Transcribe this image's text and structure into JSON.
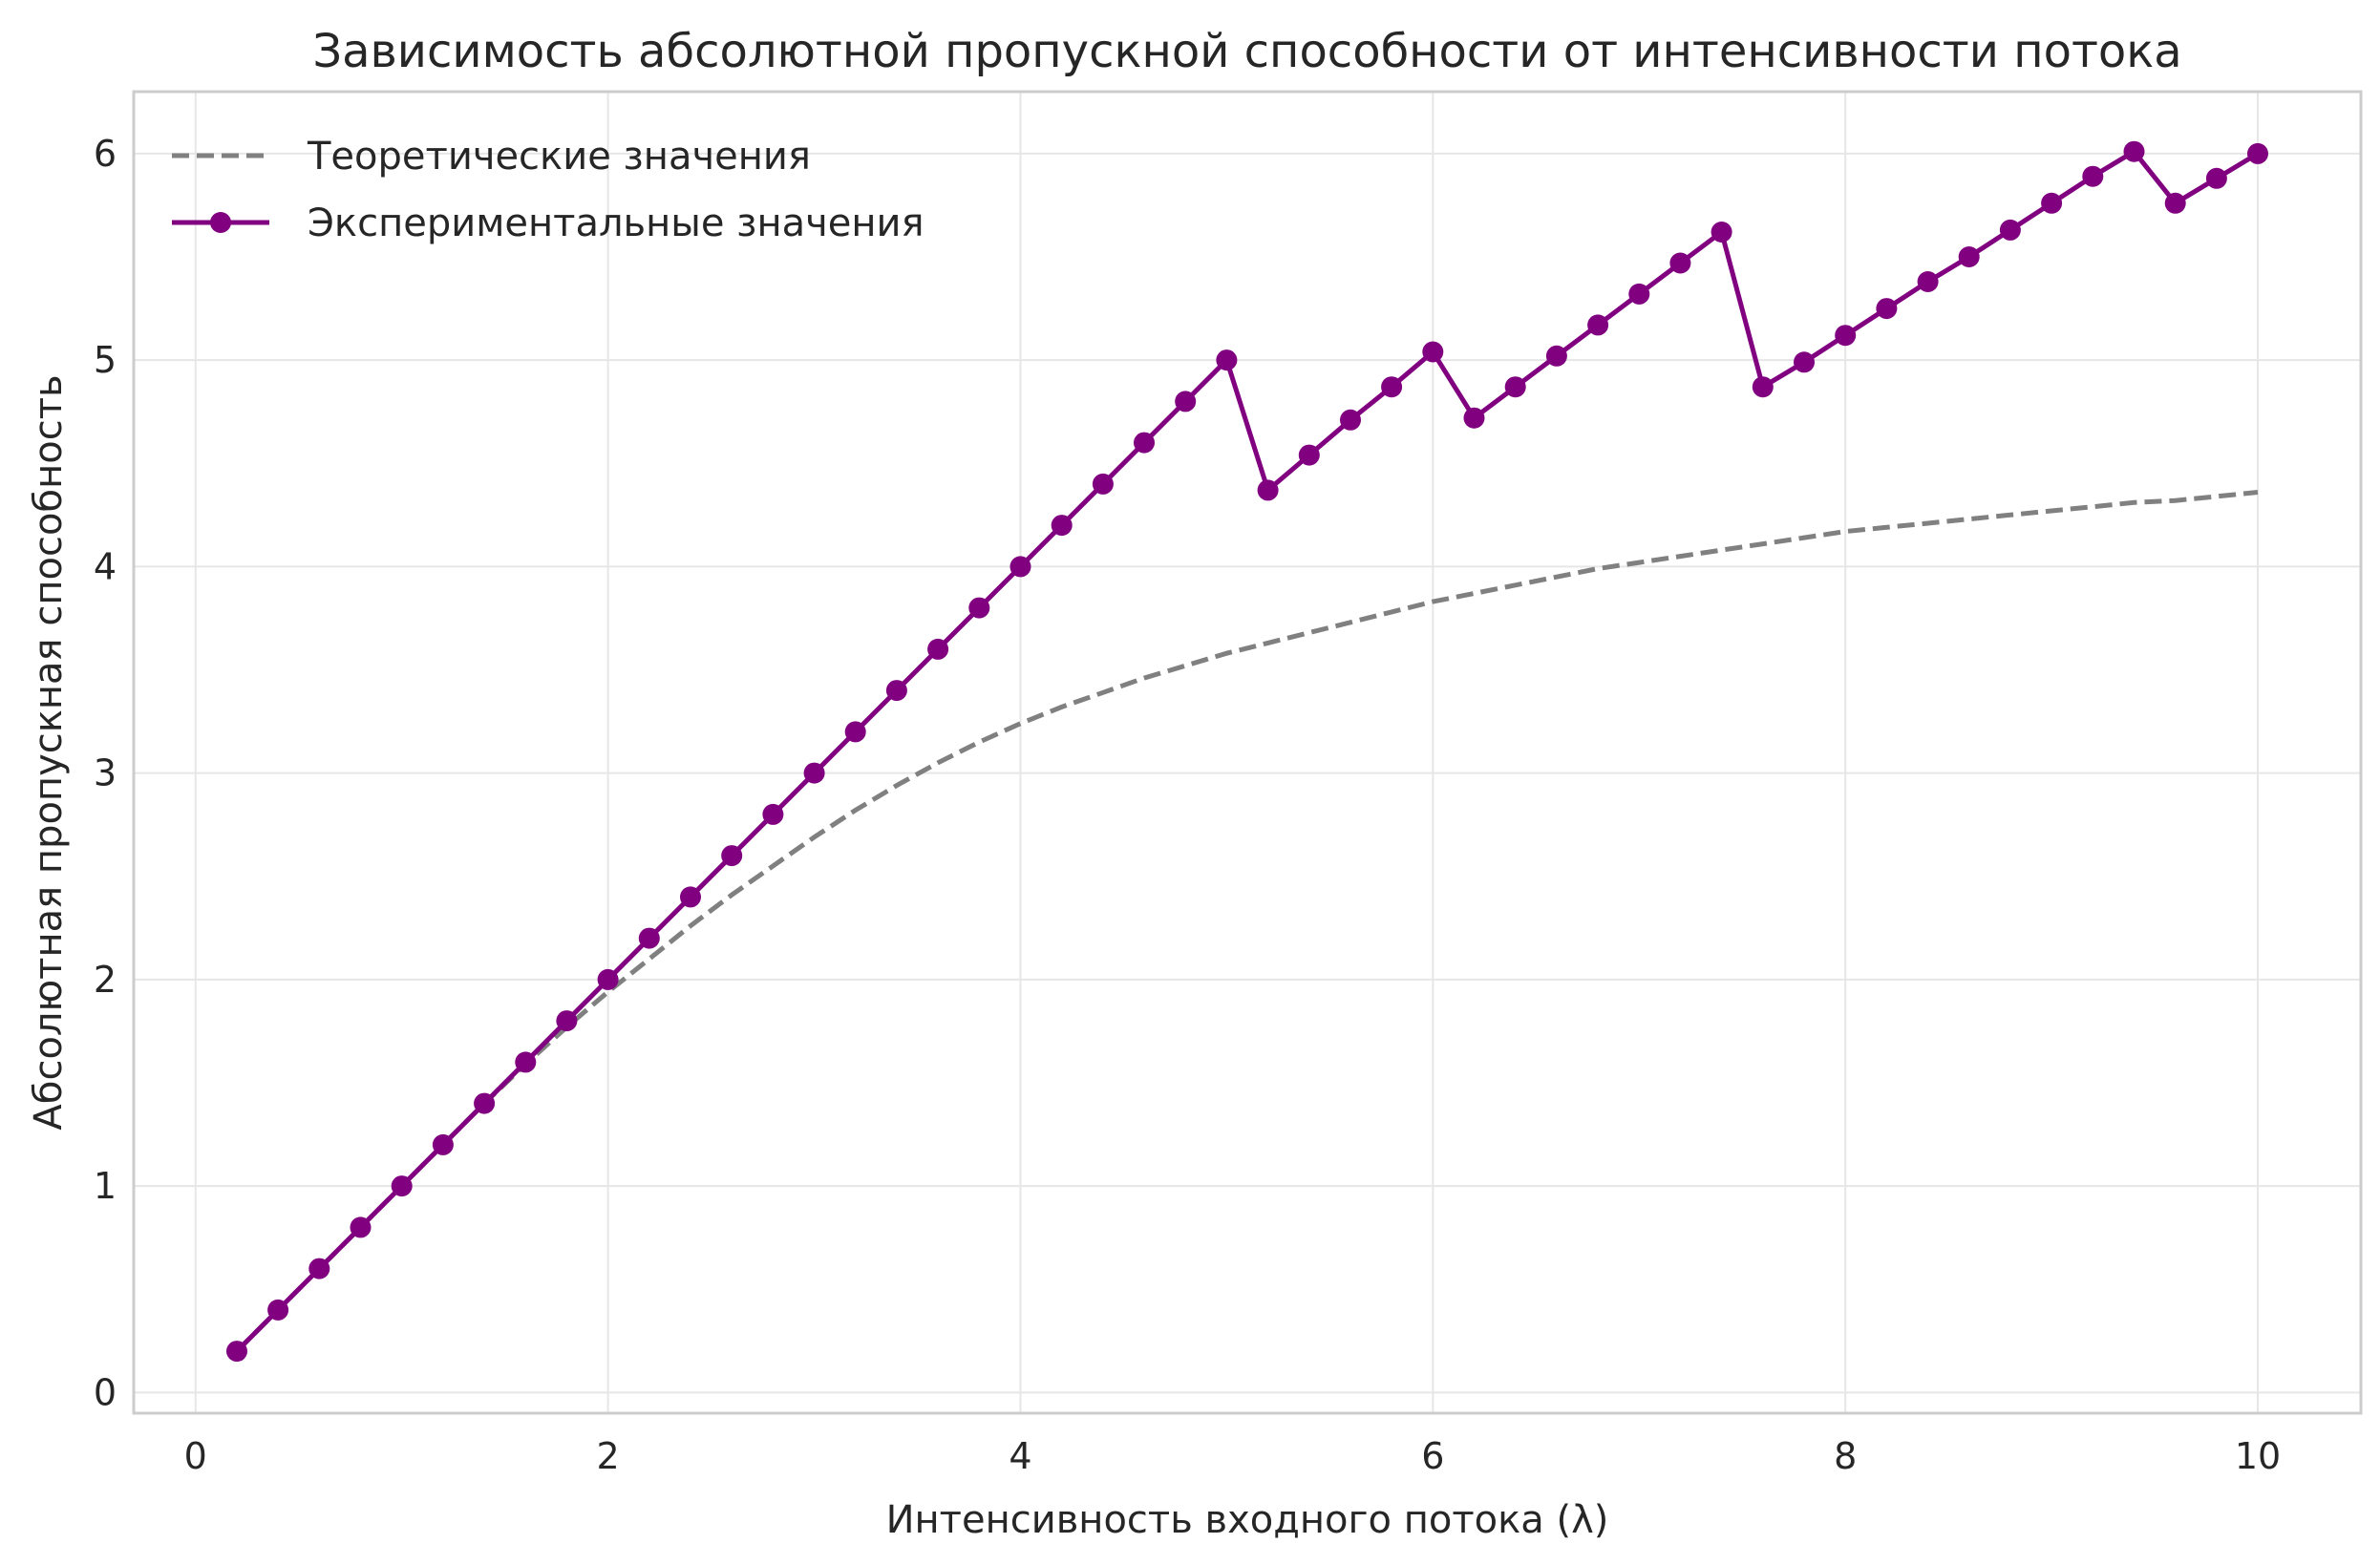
{
  "chart_data": {
    "type": "line",
    "title": "Зависимость абсолютной пропускной способности от интенсивности потока",
    "xlabel": "Интенсивность входного потока (λ)",
    "ylabel": "Абсолютная пропускная способность",
    "xlim": [
      -0.3,
      10.5
    ],
    "ylim": [
      -0.1,
      6.3
    ],
    "xticks": [
      0,
      2,
      4,
      6,
      8,
      10
    ],
    "yticks": [
      0,
      1,
      2,
      3,
      4,
      5,
      6
    ],
    "grid": true,
    "legend_position": "top-left",
    "series": [
      {
        "name": "Теоретические значения",
        "style": "dashed",
        "color": "#808080",
        "x": [
          0.2,
          0.4,
          0.6,
          0.8,
          1.0,
          1.2,
          1.4,
          1.6,
          1.8,
          2.0,
          2.2,
          2.4,
          2.6,
          2.8,
          3.0,
          3.2,
          3.4,
          3.6,
          3.8,
          4.0,
          4.2,
          4.4,
          4.6,
          4.8,
          5.0,
          5.2,
          5.4,
          5.6,
          5.8,
          6.0,
          6.2,
          6.4,
          6.6,
          6.8,
          7.0,
          7.2,
          7.4,
          7.6,
          7.8,
          8.0,
          8.2,
          8.4,
          8.6,
          8.8,
          9.0,
          9.2,
          9.4,
          9.6,
          9.8,
          10.0
        ],
        "values": [
          0.2,
          0.4,
          0.6,
          0.8,
          1.0,
          1.2,
          1.4,
          1.59,
          1.77,
          1.94,
          2.1,
          2.26,
          2.41,
          2.55,
          2.69,
          2.82,
          2.94,
          3.05,
          3.15,
          3.24,
          3.32,
          3.39,
          3.46,
          3.52,
          3.58,
          3.63,
          3.68,
          3.73,
          3.78,
          3.83,
          3.87,
          3.91,
          3.95,
          3.99,
          4.02,
          4.05,
          4.08,
          4.11,
          4.14,
          4.17,
          4.19,
          4.21,
          4.23,
          4.25,
          4.27,
          4.29,
          4.31,
          4.32,
          4.34,
          4.36
        ]
      },
      {
        "name": "Экспериментальные значения",
        "style": "solid-markers",
        "color": "#800080",
        "x": [
          0.2,
          0.4,
          0.6,
          0.8,
          1.0,
          1.2,
          1.4,
          1.6,
          1.8,
          2.0,
          2.2,
          2.4,
          2.6,
          2.8,
          3.0,
          3.2,
          3.4,
          3.6,
          3.8,
          4.0,
          4.2,
          4.4,
          4.6,
          4.8,
          5.0,
          5.2,
          5.4,
          5.6,
          5.8,
          6.0,
          6.2,
          6.4,
          6.6,
          6.8,
          7.0,
          7.2,
          7.4,
          7.6,
          7.8,
          8.0,
          8.2,
          8.4,
          8.6,
          8.8,
          9.0,
          9.2,
          9.4,
          9.6,
          9.8,
          10.0
        ],
        "values": [
          0.2,
          0.4,
          0.6,
          0.8,
          1.0,
          1.2,
          1.4,
          1.6,
          1.8,
          2.0,
          2.2,
          2.4,
          2.6,
          2.8,
          3.0,
          3.2,
          3.4,
          3.6,
          3.8,
          4.0,
          4.2,
          4.4,
          4.6,
          4.8,
          5.0,
          4.37,
          4.54,
          4.71,
          4.87,
          5.04,
          4.72,
          4.87,
          5.02,
          5.17,
          5.32,
          5.47,
          5.62,
          4.87,
          4.99,
          5.12,
          5.25,
          5.38,
          5.5,
          5.63,
          5.76,
          5.89,
          6.01,
          5.76,
          5.88,
          6.0
        ]
      }
    ]
  }
}
